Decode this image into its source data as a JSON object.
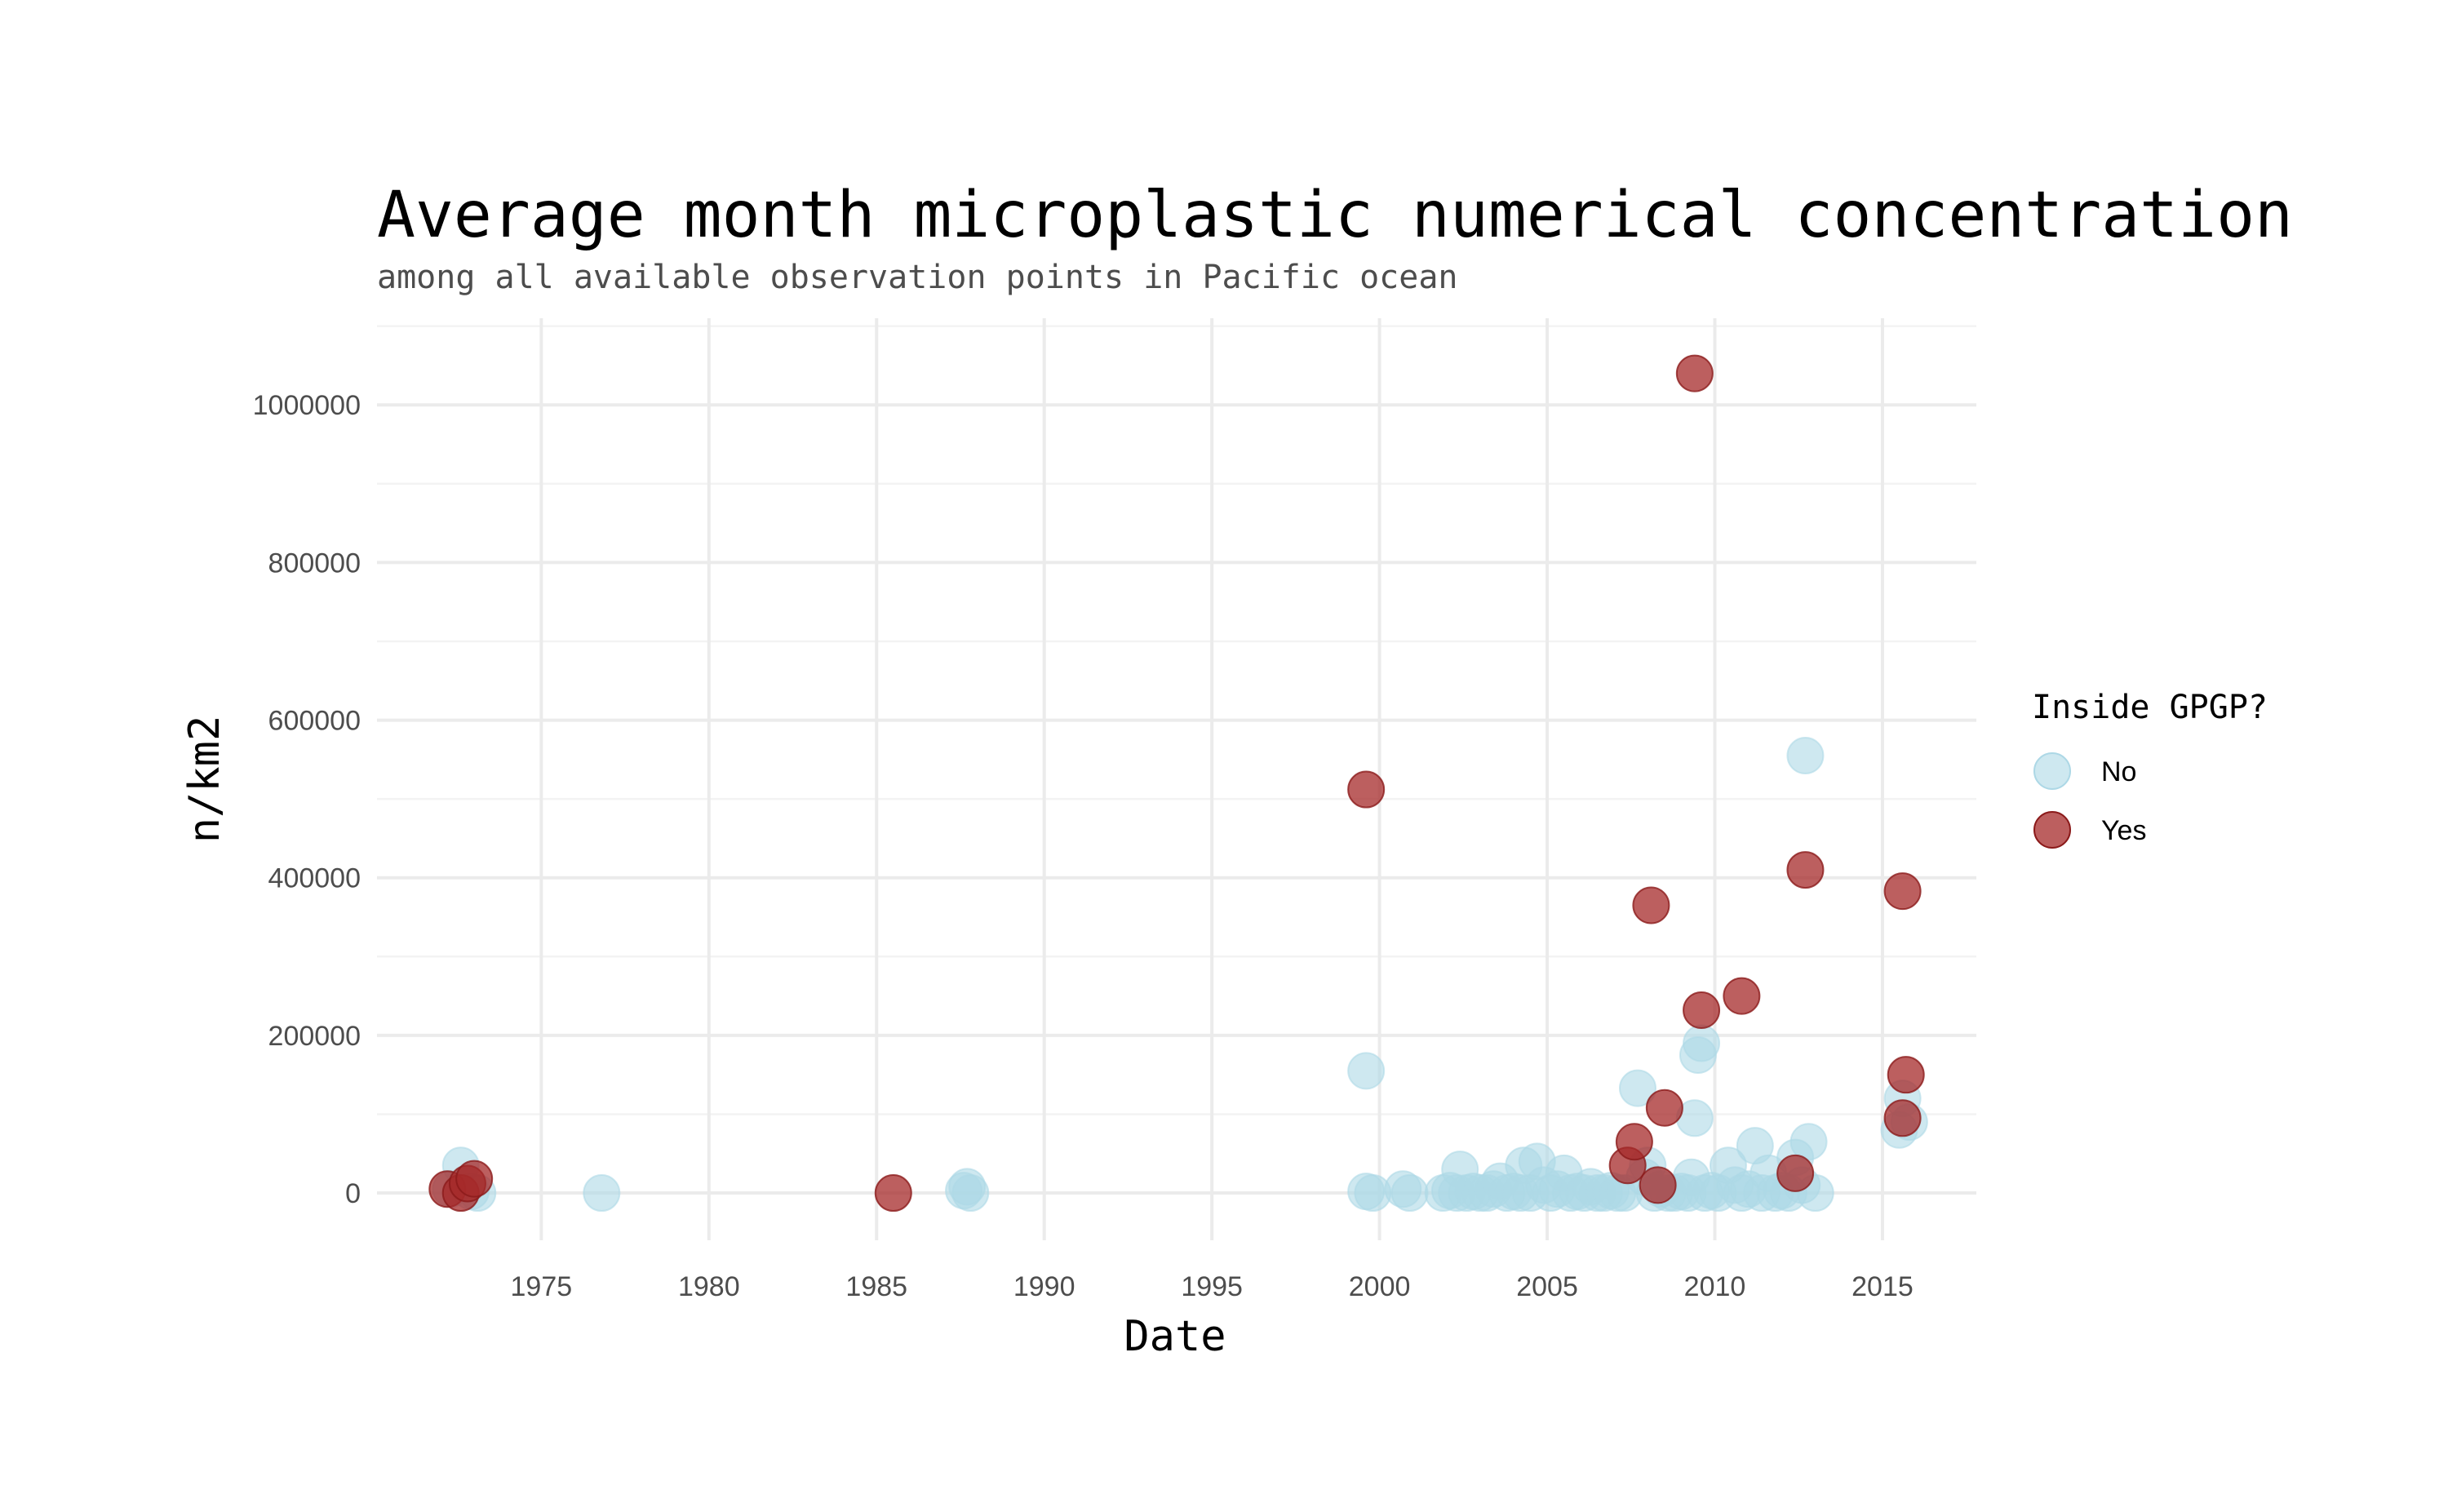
{
  "chart_data": {
    "type": "scatter",
    "title": "Average month microplastic numerical concentration",
    "subtitle": "among all available observation points in Pacific ocean",
    "xlabel": "Date",
    "ylabel": "n/km2",
    "xlim": [
      1970.1,
      2017.8
    ],
    "ylim": [
      -60000,
      1110000
    ],
    "x_ticks": [
      1975,
      1980,
      1985,
      1990,
      1995,
      2000,
      2005,
      2010,
      2015
    ],
    "x_tick_labels": [
      "1975",
      "1980",
      "1985",
      "1990",
      "1995",
      "2000",
      "2005",
      "2010",
      "2015"
    ],
    "y_ticks": [
      0,
      200000,
      400000,
      600000,
      800000,
      1000000
    ],
    "y_tick_labels": [
      "0",
      "200000",
      "400000",
      "600000",
      "800000",
      "1000000"
    ],
    "grid": true,
    "legend": {
      "title": "Inside GPGP?",
      "placement": "right"
    },
    "series": [
      {
        "name": "No",
        "color": "#ADD8E6",
        "points": [
          [
            1972.6,
            35000
          ],
          [
            1972.3,
            5000
          ],
          [
            1972.9,
            2000
          ],
          [
            1973.1,
            0
          ],
          [
            1976.8,
            0
          ],
          [
            1987.6,
            3000
          ],
          [
            1987.8,
            0
          ],
          [
            1987.7,
            8000
          ],
          [
            1999.6,
            155000
          ],
          [
            1999.6,
            2000
          ],
          [
            1999.8,
            0
          ],
          [
            2000.7,
            5000
          ],
          [
            2000.9,
            0
          ],
          [
            2001.9,
            0
          ],
          [
            2002.1,
            3000
          ],
          [
            2002.3,
            0
          ],
          [
            2002.4,
            30000
          ],
          [
            2002.6,
            0
          ],
          [
            2002.8,
            2000
          ],
          [
            2003.0,
            0
          ],
          [
            2003.2,
            0
          ],
          [
            2003.4,
            5000
          ],
          [
            2003.6,
            15000
          ],
          [
            2003.8,
            0
          ],
          [
            2004.0,
            2000
          ],
          [
            2004.2,
            0
          ],
          [
            2004.3,
            35000
          ],
          [
            2004.5,
            0
          ],
          [
            2004.7,
            40000
          ],
          [
            2004.9,
            10000
          ],
          [
            2005.1,
            0
          ],
          [
            2005.3,
            5000
          ],
          [
            2005.5,
            25000
          ],
          [
            2005.7,
            0
          ],
          [
            2005.9,
            2000
          ],
          [
            2006.1,
            0
          ],
          [
            2006.3,
            8000
          ],
          [
            2006.5,
            0
          ],
          [
            2006.7,
            0
          ],
          [
            2006.9,
            3000
          ],
          [
            2007.1,
            0
          ],
          [
            2007.3,
            0
          ],
          [
            2007.7,
            133000
          ],
          [
            2007.9,
            20000
          ],
          [
            2008.0,
            35000
          ],
          [
            2008.2,
            0
          ],
          [
            2008.4,
            5000
          ],
          [
            2008.6,
            0
          ],
          [
            2008.8,
            0
          ],
          [
            2009.0,
            2000
          ],
          [
            2009.2,
            0
          ],
          [
            2009.4,
            95000
          ],
          [
            2009.5,
            175000
          ],
          [
            2009.6,
            190000
          ],
          [
            2009.3,
            20000
          ],
          [
            2009.7,
            0
          ],
          [
            2009.9,
            3000
          ],
          [
            2010.1,
            0
          ],
          [
            2010.4,
            35000
          ],
          [
            2010.6,
            10000
          ],
          [
            2010.8,
            0
          ],
          [
            2011.0,
            5000
          ],
          [
            2011.2,
            60000
          ],
          [
            2011.4,
            0
          ],
          [
            2011.6,
            25000
          ],
          [
            2011.8,
            0
          ],
          [
            2012.0,
            3000
          ],
          [
            2012.2,
            0
          ],
          [
            2012.4,
            45000
          ],
          [
            2012.6,
            10000
          ],
          [
            2012.7,
            555000
          ],
          [
            2012.8,
            65000
          ],
          [
            2013.0,
            0
          ],
          [
            2015.5,
            80000
          ],
          [
            2015.6,
            120000
          ],
          [
            2015.8,
            90000
          ]
        ]
      },
      {
        "name": "Yes",
        "color": "#A52A2A",
        "points": [
          [
            1972.2,
            5000
          ],
          [
            1972.6,
            0
          ],
          [
            1972.8,
            12000
          ],
          [
            1973.0,
            18000
          ],
          [
            1985.5,
            0
          ],
          [
            1999.6,
            512000
          ],
          [
            2007.4,
            35000
          ],
          [
            2007.6,
            65000
          ],
          [
            2008.1,
            365000
          ],
          [
            2008.3,
            10000
          ],
          [
            2008.5,
            108000
          ],
          [
            2009.4,
            1040000
          ],
          [
            2009.6,
            232000
          ],
          [
            2010.8,
            250000
          ],
          [
            2012.4,
            25000
          ],
          [
            2012.7,
            410000
          ],
          [
            2015.6,
            383000
          ],
          [
            2015.6,
            95000
          ],
          [
            2015.7,
            150000
          ]
        ]
      }
    ]
  }
}
